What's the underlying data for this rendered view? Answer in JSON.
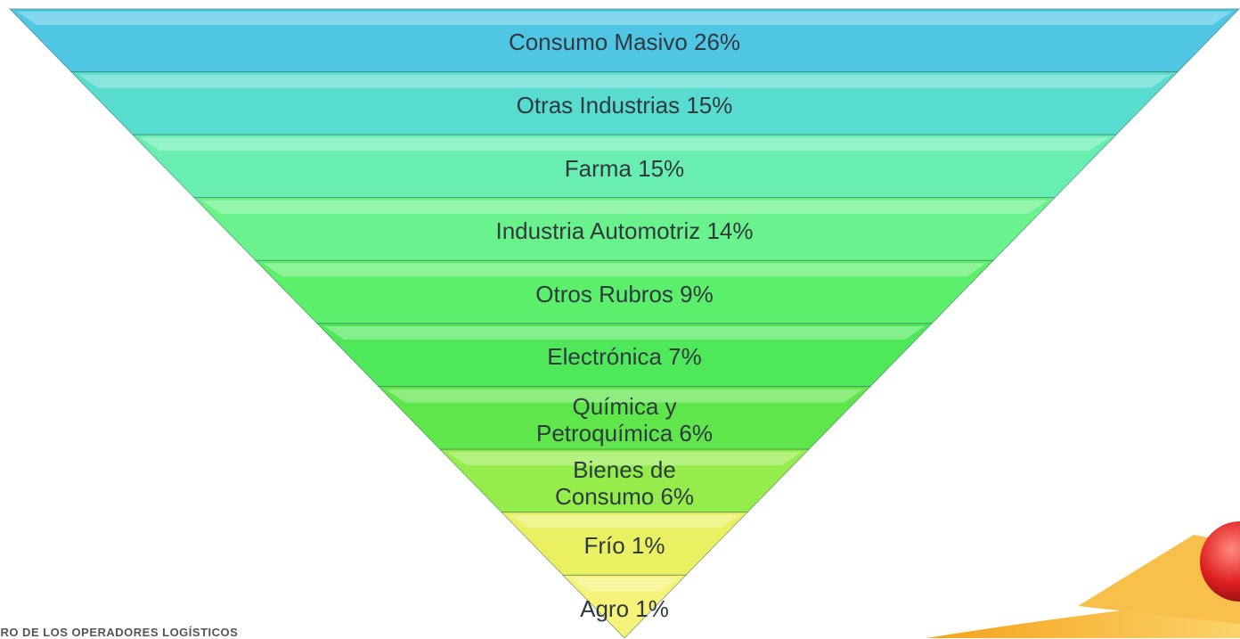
{
  "layers": [
    {
      "label": "Consumo Masivo 26%"
    },
    {
      "label": "Otras Industrias 15%"
    },
    {
      "label": "Farma 15%"
    },
    {
      "label": "Industria Automotriz 14%"
    },
    {
      "label": "Otros Rubros 9%"
    },
    {
      "label": "Electrónica 7%"
    },
    {
      "label": "Química y Petroquímica 6%"
    },
    {
      "label": "Bienes de Consumo 6%"
    },
    {
      "label": "Frío 1%"
    },
    {
      "label": "Agro 1%"
    }
  ],
  "footer": {
    "text": "TRO DE LOS OPERADORES LOGÍSTICOS"
  }
}
